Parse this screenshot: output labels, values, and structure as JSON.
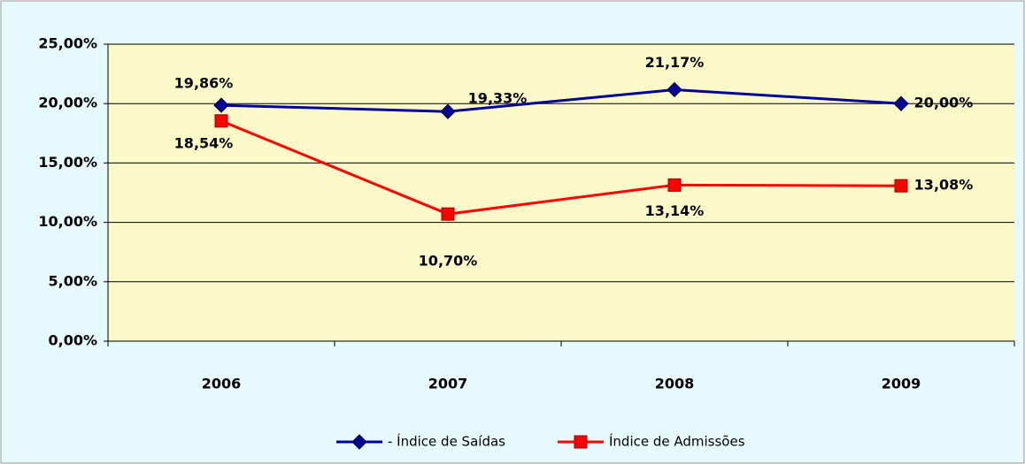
{
  "chart_data": {
    "type": "line",
    "categories": [
      "2006",
      "2007",
      "2008",
      "2009"
    ],
    "series": [
      {
        "name": "- Índice de Saídas",
        "color": "#000099",
        "marker": "diamond",
        "values": [
          19.86,
          19.33,
          21.17,
          20.0
        ],
        "value_labels": [
          "19,86%",
          "19,33%",
          "21,17%",
          "20,00%"
        ]
      },
      {
        "name": "Índice de Admissões",
        "color": "#ff0000",
        "marker": "square",
        "values": [
          18.54,
          10.7,
          13.14,
          13.08
        ],
        "value_labels": [
          "18,54%",
          "10,70%",
          "13,14%",
          "13,08%"
        ]
      }
    ],
    "ylim": [
      0,
      25
    ],
    "yticks": [
      {
        "value": 0,
        "label": "0,00%"
      },
      {
        "value": 5,
        "label": "5,00%"
      },
      {
        "value": 10,
        "label": "10,00%"
      },
      {
        "value": 15,
        "label": "15,00%"
      },
      {
        "value": 20,
        "label": "20,00%"
      },
      {
        "value": 25,
        "label": "25,00%"
      }
    ],
    "grid": true,
    "legend": "bottom"
  }
}
